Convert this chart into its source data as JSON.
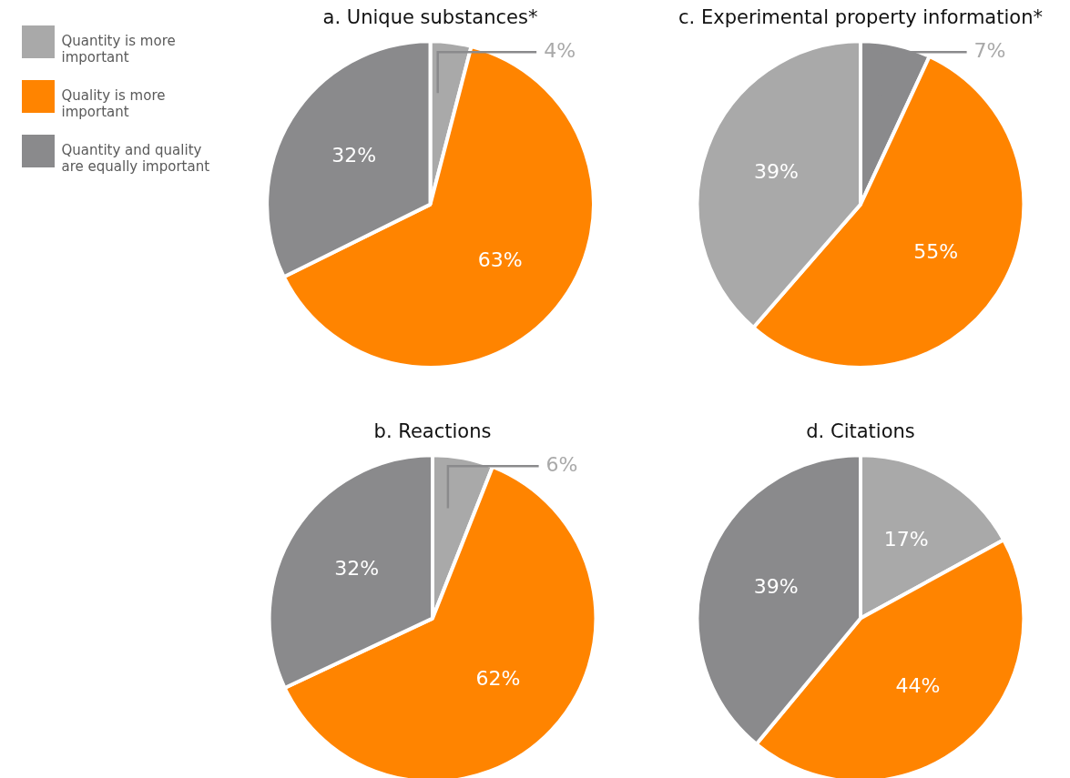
{
  "chart_data": [
    {
      "type": "pie",
      "title": "a. Unique substances*",
      "legend": "left",
      "categories": [
        "Quantity is more important",
        "Quality is more important",
        "Quantity and quality are equally important"
      ],
      "values": [
        4,
        63,
        32
      ],
      "colors": [
        "#a9a9a9",
        "#ff8400",
        "#8a8a8c"
      ],
      "value_labels": [
        "4%",
        "63%",
        "32%"
      ]
    },
    {
      "type": "pie",
      "title": "c. Experimental property information*",
      "categories": [
        null,
        null,
        null
      ],
      "values": [
        7,
        55,
        39
      ],
      "colors": [
        "#8a8a8c",
        "#ff8400",
        "#a9a9a9"
      ],
      "value_labels": [
        "7%",
        "55%",
        "39%"
      ]
    },
    {
      "type": "pie",
      "title": "b. Reactions",
      "categories": [
        null,
        null,
        null
      ],
      "values": [
        6,
        62,
        32
      ],
      "colors": [
        "#a9a9a9",
        "#ff8400",
        "#8a8a8c"
      ],
      "value_labels": [
        "6%",
        "62%",
        "32%"
      ]
    },
    {
      "type": "pie",
      "title": "d. Citations",
      "categories": [
        null,
        null,
        null
      ],
      "values": [
        17,
        44,
        39
      ],
      "colors": [
        "#a9a9a9",
        "#ff8400",
        "#8a8a8c"
      ],
      "value_labels": [
        "17%",
        "44%",
        "39%"
      ]
    }
  ]
}
